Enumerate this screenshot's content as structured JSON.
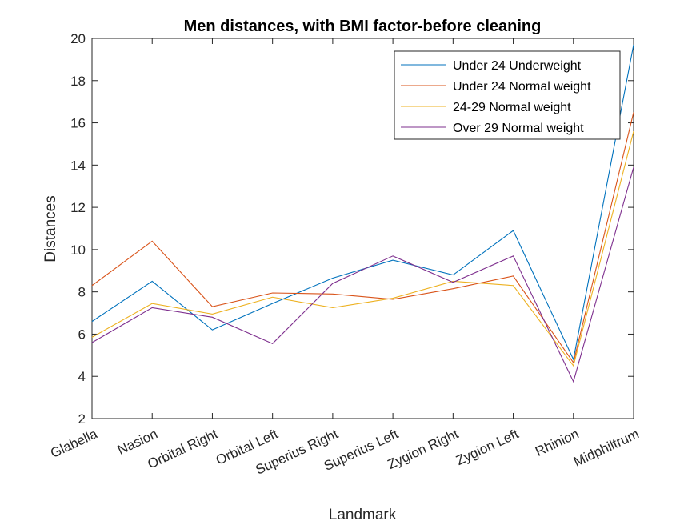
{
  "chart_data": {
    "type": "line",
    "title": "Men distances, with BMI factor-before cleaning",
    "xlabel": "Landmark",
    "ylabel": "Distances",
    "ylim": [
      2,
      20
    ],
    "yticks": [
      2,
      4,
      6,
      8,
      10,
      12,
      14,
      16,
      18,
      20
    ],
    "categories": [
      "Glabella",
      "Nasion",
      "Orbital Right",
      "Orbital Left",
      "Superius Right",
      "Superius Left",
      "Zygion Right",
      "Zygion Left",
      "Rhinion",
      "Midphiltrum"
    ],
    "grid": false,
    "legend_position": "top-right",
    "series": [
      {
        "name": "Under 24 Underweight",
        "color": "#0072BD",
        "values": [
          6.6,
          8.5,
          6.2,
          7.45,
          8.65,
          9.5,
          8.8,
          10.9,
          4.8,
          19.7
        ]
      },
      {
        "name": "Under 24 Normal weight",
        "color": "#D95319",
        "values": [
          8.3,
          10.4,
          7.3,
          7.95,
          7.9,
          7.65,
          8.15,
          8.75,
          4.65,
          16.5
        ]
      },
      {
        "name": "24-29 Normal weight",
        "color": "#EDB120",
        "values": [
          5.85,
          7.45,
          6.95,
          7.75,
          7.25,
          7.7,
          8.5,
          8.3,
          4.5,
          15.6
        ]
      },
      {
        "name": "Over 29 Normal weight",
        "color": "#7E2F8E",
        "values": [
          5.6,
          7.25,
          6.8,
          5.55,
          8.4,
          9.7,
          8.45,
          9.7,
          3.75,
          13.9
        ]
      }
    ]
  }
}
